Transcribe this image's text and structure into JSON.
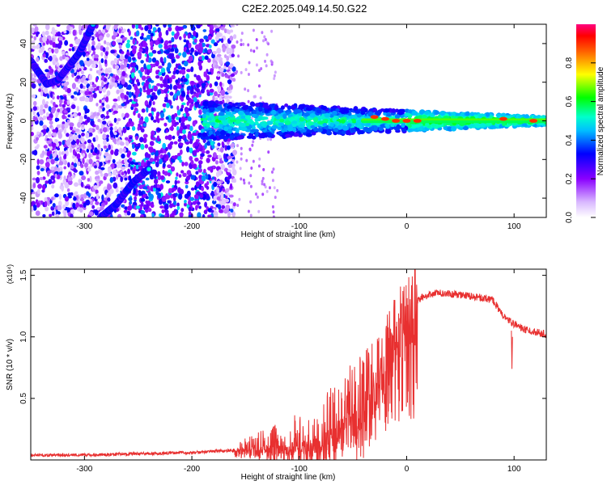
{
  "title": "C2E2.2025.049.14.50.G22",
  "chart_data": [
    {
      "type": "heatmap",
      "xlabel": "Height of straight line (km)",
      "ylabel": "Frequency (Hz)",
      "xlim": [
        -350,
        130
      ],
      "ylim": [
        -50,
        50
      ],
      "xticks": [
        -300,
        -200,
        -100,
        0,
        100
      ],
      "yticks": [
        -40,
        -20,
        0,
        20,
        40
      ],
      "colorbar": {
        "label": "Normalized spectral amplitude",
        "range": [
          0,
          1
        ],
        "ticks": [
          0.0,
          0.2,
          0.4,
          0.6,
          0.8
        ],
        "tick_labels": [
          "0.0",
          "0.2",
          "0.4",
          "0.6",
          "0.8"
        ],
        "colormap": "rainbow (white → violet → blue → cyan → green → yellow → red → magenta)"
      },
      "features": [
        {
          "name": "upper curved arc",
          "points": [
            [
              -350,
              31
            ],
            [
              -335,
              19
            ],
            [
              -325,
              21
            ],
            [
              -305,
              35
            ],
            [
              -292,
              50
            ]
          ]
        },
        {
          "name": "lower diagonal line",
          "points": [
            [
              -285,
              -50
            ],
            [
              -270,
              -43
            ],
            [
              -255,
              -32
            ],
            [
              -240,
              -25
            ]
          ]
        },
        {
          "name": "central band",
          "x_range": [
            -190,
            130
          ],
          "center_hz": 0,
          "half_width_hz": [
            10,
            2
          ]
        },
        {
          "name": "noise region",
          "x_range": [
            -350,
            -160
          ],
          "freq_range": [
            -50,
            50
          ]
        },
        {
          "name": "peak spots",
          "x": [
            -30,
            -20,
            -10,
            0,
            10,
            90,
            118
          ],
          "y": [
            2,
            1,
            0,
            0,
            0,
            1,
            0
          ]
        }
      ]
    },
    {
      "type": "line",
      "xlabel": "Height of straight line (km)",
      "ylabel": "SNR (10 * v/v)",
      "y_multiplier": "(x10⁴)",
      "xlim": [
        -350,
        130
      ],
      "ylim": [
        0,
        1.55
      ],
      "xticks": [
        -300,
        -200,
        -100,
        0,
        100
      ],
      "yticks": [
        0.5,
        1.0,
        1.5
      ],
      "ytick_labels": [
        "0.5",
        "1.0",
        "1.5"
      ],
      "color": "#e83030",
      "series": [
        {
          "x": [
            -350,
            -300,
            -250,
            -200,
            -160,
            -150,
            -130,
            -110,
            -100,
            -90,
            -80,
            -70,
            -60,
            -50,
            -40,
            -35,
            -30,
            -25,
            -20,
            -15,
            -10,
            -5,
            0,
            10,
            20,
            30,
            40,
            50,
            60,
            70,
            80,
            90,
            100,
            110,
            120,
            130
          ],
          "values": [
            0.04,
            0.04,
            0.05,
            0.06,
            0.08,
            0.09,
            0.11,
            0.12,
            0.14,
            0.16,
            0.2,
            0.25,
            0.3,
            0.4,
            0.45,
            0.5,
            0.6,
            0.7,
            0.85,
            0.95,
            1.05,
            1.15,
            1.22,
            1.3,
            1.34,
            1.36,
            1.35,
            1.34,
            1.33,
            1.32,
            1.3,
            1.17,
            1.1,
            1.06,
            1.04,
            1.02
          ]
        }
      ]
    }
  ]
}
